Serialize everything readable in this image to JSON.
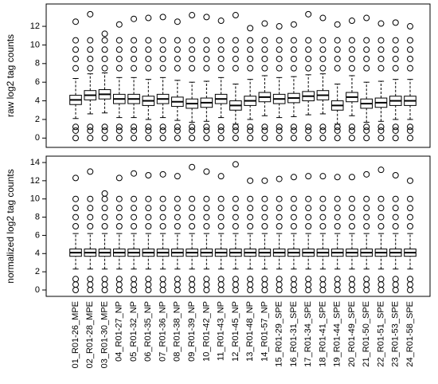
{
  "chart_data": [
    {
      "type": "box",
      "y_label": "raw log2 tag counts",
      "ylim": [
        -1.0,
        14.4
      ],
      "yticks": [
        0,
        2,
        4,
        6,
        8,
        10,
        12
      ],
      "boxes": [
        {
          "whislo": 2.1,
          "q1": 3.6,
          "med": 4.1,
          "q3": 4.6,
          "whishi": 6.4,
          "fliers": [
            0,
            0.8,
            1.2,
            7.5,
            8.5,
            9.5,
            10.5,
            12.5
          ]
        },
        {
          "whislo": 2.6,
          "q1": 4.1,
          "med": 4.6,
          "q3": 5.1,
          "whishi": 6.9,
          "fliers": [
            0,
            0.8,
            1.2,
            7.5,
            8.5,
            9.5,
            10.5,
            13.3
          ]
        },
        {
          "whislo": 2.7,
          "q1": 4.2,
          "med": 4.7,
          "q3": 5.2,
          "whishi": 7.0,
          "fliers": [
            0,
            0.8,
            1.2,
            7.5,
            8.5,
            9.5,
            10.5,
            11.2
          ]
        },
        {
          "whislo": 2.2,
          "q1": 3.7,
          "med": 4.2,
          "q3": 4.7,
          "whishi": 6.5,
          "fliers": [
            0,
            0.8,
            1.2,
            7.5,
            8.5,
            9.5,
            10.5,
            12.2
          ]
        },
        {
          "whislo": 2.2,
          "q1": 3.7,
          "med": 4.2,
          "q3": 4.7,
          "whishi": 6.5,
          "fliers": [
            0,
            0.8,
            1.2,
            7.5,
            8.5,
            9.5,
            10.5,
            12.8
          ]
        },
        {
          "whislo": 2.0,
          "q1": 3.5,
          "med": 4.0,
          "q3": 4.5,
          "whishi": 6.3,
          "fliers": [
            0,
            0.8,
            1.2,
            7.5,
            8.5,
            9.5,
            10.5,
            12.9
          ]
        },
        {
          "whislo": 2.2,
          "q1": 3.7,
          "med": 4.2,
          "q3": 4.7,
          "whishi": 6.5,
          "fliers": [
            0,
            0.8,
            1.2,
            7.5,
            8.5,
            9.5,
            10.5,
            13.0
          ]
        },
        {
          "whislo": 1.9,
          "q1": 3.4,
          "med": 3.9,
          "q3": 4.4,
          "whishi": 6.2,
          "fliers": [
            0,
            0.8,
            1.2,
            7.5,
            8.5,
            9.5,
            10.5,
            12.5
          ]
        },
        {
          "whislo": 1.7,
          "q1": 3.2,
          "med": 3.7,
          "q3": 4.2,
          "whishi": 6.0,
          "fliers": [
            0,
            0.8,
            1.2,
            7.5,
            8.5,
            9.5,
            10.5,
            13.2
          ]
        },
        {
          "whislo": 1.8,
          "q1": 3.3,
          "med": 3.8,
          "q3": 4.3,
          "whishi": 6.1,
          "fliers": [
            0,
            0.8,
            1.2,
            7.5,
            8.5,
            9.5,
            10.5,
            13.0
          ]
        },
        {
          "whislo": 2.2,
          "q1": 3.7,
          "med": 4.2,
          "q3": 4.7,
          "whishi": 6.5,
          "fliers": [
            0,
            0.8,
            1.2,
            7.5,
            8.5,
            9.5,
            10.5,
            12.6
          ]
        },
        {
          "whislo": 1.5,
          "q1": 3.0,
          "med": 3.5,
          "q3": 4.0,
          "whishi": 5.8,
          "fliers": [
            0,
            0.8,
            1.2,
            7.5,
            8.5,
            9.5,
            10.5,
            13.2
          ]
        },
        {
          "whislo": 2.0,
          "q1": 3.5,
          "med": 4.0,
          "q3": 4.5,
          "whishi": 6.3,
          "fliers": [
            0,
            0.8,
            1.2,
            7.5,
            8.5,
            9.5,
            10.5,
            11.8
          ]
        },
        {
          "whislo": 2.4,
          "q1": 3.9,
          "med": 4.4,
          "q3": 4.9,
          "whishi": 6.7,
          "fliers": [
            0,
            0.8,
            1.2,
            7.5,
            8.5,
            9.5,
            10.5,
            12.3
          ]
        },
        {
          "whislo": 2.2,
          "q1": 3.7,
          "med": 4.2,
          "q3": 4.7,
          "whishi": 6.5,
          "fliers": [
            0,
            0.8,
            1.2,
            7.5,
            8.5,
            9.5,
            10.5,
            12.0
          ]
        },
        {
          "whislo": 2.3,
          "q1": 3.8,
          "med": 4.3,
          "q3": 4.8,
          "whishi": 6.6,
          "fliers": [
            0,
            0.8,
            1.2,
            7.5,
            8.5,
            9.5,
            10.5,
            12.2
          ]
        },
        {
          "whislo": 2.5,
          "q1": 4.0,
          "med": 4.5,
          "q3": 5.0,
          "whishi": 6.8,
          "fliers": [
            0,
            0.8,
            1.2,
            7.5,
            8.5,
            9.5,
            10.5,
            13.3
          ]
        },
        {
          "whislo": 2.6,
          "q1": 4.1,
          "med": 4.6,
          "q3": 5.1,
          "whishi": 6.9,
          "fliers": [
            0,
            0.8,
            1.2,
            7.5,
            8.5,
            9.5,
            10.5,
            12.9
          ]
        },
        {
          "whislo": 1.5,
          "q1": 3.0,
          "med": 3.5,
          "q3": 4.0,
          "whishi": 5.8,
          "fliers": [
            0,
            0.8,
            1.2,
            7.5,
            8.5,
            9.5,
            10.5,
            12.2
          ]
        },
        {
          "whislo": 2.4,
          "q1": 3.9,
          "med": 4.4,
          "q3": 4.9,
          "whishi": 6.7,
          "fliers": [
            0,
            0.8,
            1.2,
            7.5,
            8.5,
            9.5,
            10.5,
            12.6
          ]
        },
        {
          "whislo": 1.7,
          "q1": 3.2,
          "med": 3.7,
          "q3": 4.2,
          "whishi": 6.0,
          "fliers": [
            0,
            0.8,
            1.2,
            7.5,
            8.5,
            9.5,
            10.5,
            12.9
          ]
        },
        {
          "whislo": 1.8,
          "q1": 3.3,
          "med": 3.8,
          "q3": 4.3,
          "whishi": 6.1,
          "fliers": [
            0,
            0.8,
            1.2,
            7.5,
            8.5,
            9.5,
            10.5,
            12.3
          ]
        },
        {
          "whislo": 2.0,
          "q1": 3.5,
          "med": 4.0,
          "q3": 4.5,
          "whishi": 6.3,
          "fliers": [
            0,
            0.8,
            1.2,
            7.5,
            8.5,
            9.5,
            10.5,
            12.4
          ]
        },
        {
          "whislo": 2.0,
          "q1": 3.5,
          "med": 4.0,
          "q3": 4.5,
          "whishi": 6.3,
          "fliers": [
            0,
            0.8,
            1.2,
            7.5,
            8.5,
            9.5,
            10.5,
            12.0
          ]
        }
      ]
    },
    {
      "type": "box",
      "y_label": "normalized log2 tag counts",
      "ylim": [
        -0.7,
        14.7
      ],
      "yticks": [
        0,
        2,
        4,
        6,
        8,
        10,
        12,
        14
      ],
      "categories": [
        "01_R01-26_MPE",
        "02_R01-28_MPE",
        "03_R01-30_MPE",
        "04_R01-27_NP",
        "05_R01-32_NP",
        "06_R01-35_NP",
        "07_R01-36_NP",
        "08_R01-38_NP",
        "09_R01-39_NP",
        "10_R01-42_NP",
        "11_R01-43_NP",
        "12_R01-45_NP",
        "13_R01-48_NP",
        "14_R01-57_NP",
        "15_R01-29_SPE",
        "16_R01-31_SPE",
        "17_R01-34_SPE",
        "18_R01-41_SPE",
        "19_R01-44_SPE",
        "20_R01-49_SPE",
        "21_R01-50_SPE",
        "22_R01-51_SPE",
        "23_R01-53_SPE",
        "24_R01-58_SPE"
      ],
      "boxes": [
        {
          "whislo": 2.3,
          "q1": 3.7,
          "med": 4.1,
          "q3": 4.5,
          "whishi": 6.2,
          "fliers": [
            0,
            0.6,
            1.2,
            7,
            8,
            9,
            10,
            12.3
          ]
        },
        {
          "whislo": 2.3,
          "q1": 3.7,
          "med": 4.1,
          "q3": 4.5,
          "whishi": 6.2,
          "fliers": [
            0,
            0.6,
            1.2,
            7,
            8,
            9,
            10,
            13.0
          ]
        },
        {
          "whislo": 2.3,
          "q1": 3.7,
          "med": 4.1,
          "q3": 4.5,
          "whishi": 6.2,
          "fliers": [
            0,
            0.6,
            1.2,
            7,
            8,
            9,
            10,
            10.6
          ]
        },
        {
          "whislo": 2.3,
          "q1": 3.7,
          "med": 4.1,
          "q3": 4.5,
          "whishi": 6.2,
          "fliers": [
            0,
            0.6,
            1.2,
            7,
            8,
            9,
            10,
            12.3
          ]
        },
        {
          "whislo": 2.3,
          "q1": 3.7,
          "med": 4.1,
          "q3": 4.5,
          "whishi": 6.2,
          "fliers": [
            0,
            0.6,
            1.2,
            7,
            8,
            9,
            10,
            12.8
          ]
        },
        {
          "whislo": 2.3,
          "q1": 3.7,
          "med": 4.1,
          "q3": 4.5,
          "whishi": 6.2,
          "fliers": [
            0,
            0.6,
            1.2,
            7,
            8,
            9,
            10,
            12.6
          ]
        },
        {
          "whislo": 2.3,
          "q1": 3.7,
          "med": 4.1,
          "q3": 4.5,
          "whishi": 6.2,
          "fliers": [
            0,
            0.6,
            1.2,
            7,
            8,
            9,
            10,
            12.7
          ]
        },
        {
          "whislo": 2.3,
          "q1": 3.7,
          "med": 4.1,
          "q3": 4.5,
          "whishi": 6.2,
          "fliers": [
            0,
            0.6,
            1.2,
            7,
            8,
            9,
            10,
            12.5
          ]
        },
        {
          "whislo": 2.3,
          "q1": 3.7,
          "med": 4.1,
          "q3": 4.5,
          "whishi": 6.2,
          "fliers": [
            0,
            0.6,
            1.2,
            7,
            8,
            9,
            10,
            13.5
          ]
        },
        {
          "whislo": 2.3,
          "q1": 3.7,
          "med": 4.1,
          "q3": 4.5,
          "whishi": 6.2,
          "fliers": [
            0,
            0.6,
            1.2,
            7,
            8,
            9,
            10,
            13.0
          ]
        },
        {
          "whislo": 2.3,
          "q1": 3.7,
          "med": 4.1,
          "q3": 4.5,
          "whishi": 6.2,
          "fliers": [
            0,
            0.6,
            1.2,
            7,
            8,
            9,
            10,
            12.5
          ]
        },
        {
          "whislo": 2.3,
          "q1": 3.7,
          "med": 4.1,
          "q3": 4.5,
          "whishi": 6.2,
          "fliers": [
            0,
            0.6,
            1.2,
            7,
            8,
            9,
            10,
            13.8
          ]
        },
        {
          "whislo": 2.3,
          "q1": 3.7,
          "med": 4.1,
          "q3": 4.5,
          "whishi": 6.2,
          "fliers": [
            0,
            0.6,
            1.2,
            7,
            8,
            9,
            10,
            12.0
          ]
        },
        {
          "whislo": 2.3,
          "q1": 3.7,
          "med": 4.1,
          "q3": 4.5,
          "whishi": 6.2,
          "fliers": [
            0,
            0.6,
            1.2,
            7,
            8,
            9,
            10,
            12.0
          ]
        },
        {
          "whislo": 2.3,
          "q1": 3.7,
          "med": 4.1,
          "q3": 4.5,
          "whishi": 6.2,
          "fliers": [
            0,
            0.6,
            1.2,
            7,
            8,
            9,
            10,
            12.2
          ]
        },
        {
          "whislo": 2.3,
          "q1": 3.7,
          "med": 4.1,
          "q3": 4.5,
          "whishi": 6.2,
          "fliers": [
            0,
            0.6,
            1.2,
            7,
            8,
            9,
            10,
            12.4
          ]
        },
        {
          "whislo": 2.3,
          "q1": 3.7,
          "med": 4.1,
          "q3": 4.5,
          "whishi": 6.2,
          "fliers": [
            0,
            0.6,
            1.2,
            7,
            8,
            9,
            10,
            12.5
          ]
        },
        {
          "whislo": 2.3,
          "q1": 3.7,
          "med": 4.1,
          "q3": 4.5,
          "whishi": 6.2,
          "fliers": [
            0,
            0.6,
            1.2,
            7,
            8,
            9,
            10,
            12.5
          ]
        },
        {
          "whislo": 2.3,
          "q1": 3.7,
          "med": 4.1,
          "q3": 4.5,
          "whishi": 6.2,
          "fliers": [
            0,
            0.6,
            1.2,
            7,
            8,
            9,
            10,
            12.4
          ]
        },
        {
          "whislo": 2.3,
          "q1": 3.7,
          "med": 4.1,
          "q3": 4.5,
          "whishi": 6.2,
          "fliers": [
            0,
            0.6,
            1.2,
            7,
            8,
            9,
            10,
            12.4
          ]
        },
        {
          "whislo": 2.3,
          "q1": 3.7,
          "med": 4.1,
          "q3": 4.5,
          "whishi": 6.2,
          "fliers": [
            0,
            0.6,
            1.2,
            7,
            8,
            9,
            10,
            12.7
          ]
        },
        {
          "whislo": 2.3,
          "q1": 3.7,
          "med": 4.1,
          "q3": 4.5,
          "whishi": 6.2,
          "fliers": [
            0,
            0.6,
            1.2,
            7,
            8,
            9,
            10,
            13.2
          ]
        },
        {
          "whislo": 2.3,
          "q1": 3.7,
          "med": 4.1,
          "q3": 4.5,
          "whishi": 6.2,
          "fliers": [
            0,
            0.6,
            1.2,
            7,
            8,
            9,
            10,
            12.6
          ]
        },
        {
          "whislo": 2.3,
          "q1": 3.7,
          "med": 4.1,
          "q3": 4.5,
          "whishi": 6.2,
          "fliers": [
            0,
            0.6,
            1.2,
            7,
            8,
            9,
            10,
            12.0
          ]
        }
      ]
    }
  ]
}
